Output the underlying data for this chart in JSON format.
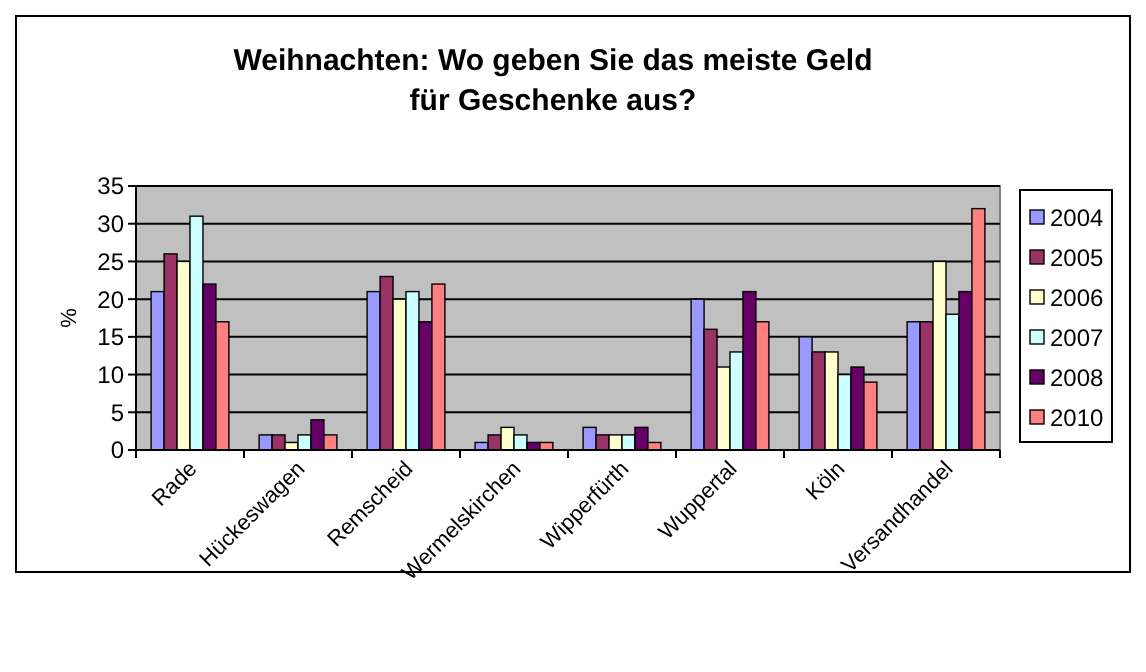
{
  "chart_data": {
    "type": "bar",
    "title": "Weihnachten: Wo geben Sie das meiste Geld für Geschenke aus?",
    "ylabel": "%",
    "categories": [
      "Rade",
      "Hückeswagen",
      "Remscheid",
      "Wermelskirchen",
      "Wipperfürth",
      "Wuppertal",
      "Köln",
      "Versandhandel"
    ],
    "series": [
      {
        "name": "2004",
        "color": "#9999ff",
        "values": [
          21,
          2,
          21,
          1,
          3,
          20,
          15,
          17
        ]
      },
      {
        "name": "2005",
        "color": "#993366",
        "values": [
          26,
          2,
          23,
          2,
          2,
          16,
          13,
          17
        ]
      },
      {
        "name": "2006",
        "color": "#ffffcc",
        "values": [
          25,
          1,
          20,
          3,
          2,
          11,
          13,
          25
        ]
      },
      {
        "name": "2007",
        "color": "#ccffff",
        "values": [
          31,
          2,
          21,
          2,
          2,
          13,
          10,
          18
        ]
      },
      {
        "name": "2008",
        "color": "#660066",
        "values": [
          22,
          4,
          17,
          1,
          3,
          21,
          11,
          21
        ]
      },
      {
        "name": "2010",
        "color": "#ff8080",
        "values": [
          17,
          2,
          22,
          1,
          1,
          17,
          9,
          32
        ]
      }
    ],
    "ylim": [
      0,
      35
    ],
    "yticks": [
      0,
      5,
      10,
      15,
      20,
      25,
      30,
      35
    ],
    "grid": "y",
    "legend": "right"
  }
}
